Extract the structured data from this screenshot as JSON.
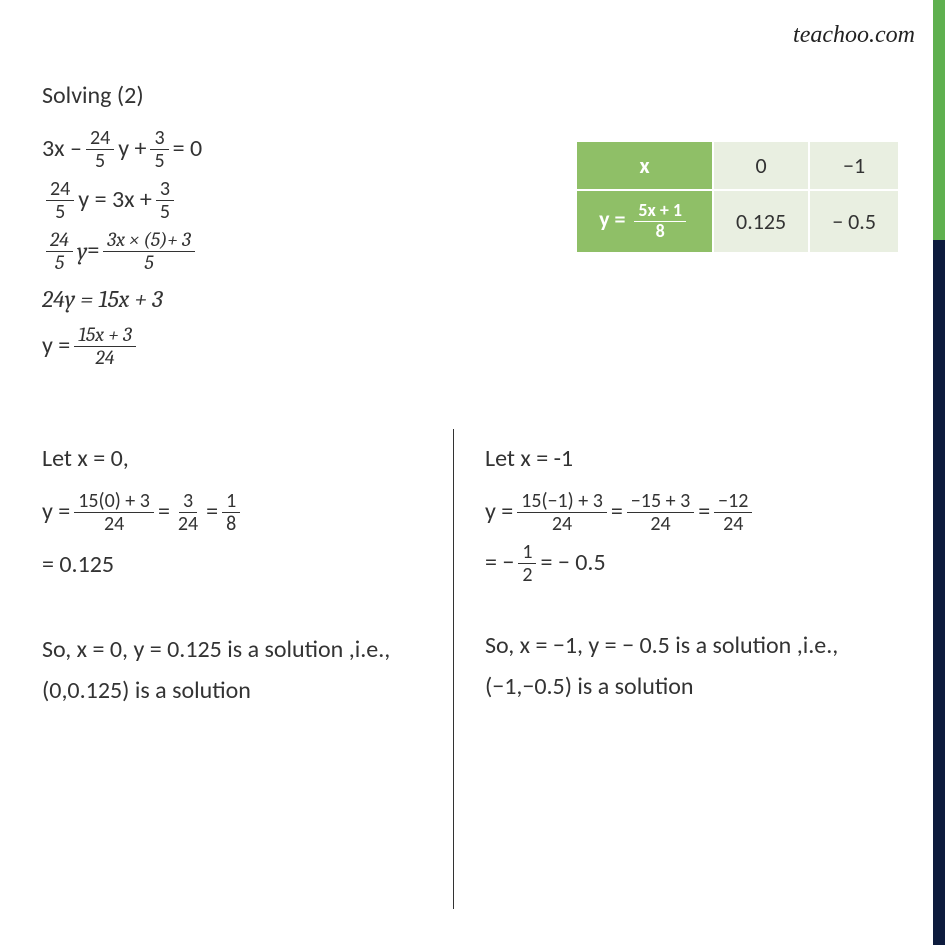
{
  "watermark": "teachoo.com",
  "header": "Solving (2)",
  "derivation": {
    "l1_a": "3x –",
    "l1_f1n": "24",
    "l1_f1d": "5",
    "l1_b": "y +",
    "l1_f2n": "3",
    "l1_f2d": "5",
    "l1_c": "= 0",
    "l2_f1n": "24",
    "l2_f1d": "5",
    "l2_a": "y = 3x +",
    "l2_f2n": "3",
    "l2_f2d": "5",
    "l3_f1n": "24",
    "l3_f1d": "5",
    "l3_a": "y",
    "l3_b": " = ",
    "l3_f2n": "3x × (5)+ 3",
    "l3_f2d": "5",
    "l4": "24y  =  15x  +  3",
    "l5_a": "y =",
    "l5_fn": "15x + 3",
    "l5_fd": "24"
  },
  "table": {
    "x_label": "x",
    "y_label_prefix": "y =",
    "y_frac_n": "5x + 1",
    "y_frac_d": "8",
    "c_x0": "0",
    "c_x1": "−1",
    "c_y0": "0.125",
    "c_y1": "− 0.5"
  },
  "left": {
    "head": "Let x = 0,",
    "l1_a": "y =",
    "l1_f1n": "15(0) + 3",
    "l1_f1d": "24",
    "l1_b": " = ",
    "l1_f2n": "3",
    "l1_f2d": "24",
    "l1_c": " = ",
    "l1_f3n": "1",
    "l1_f3d": "8",
    "l2": "= 0.125",
    "conc": "So, x = 0, y = 0.125 is a solution ,i.e., (0,0.125) is a solution"
  },
  "right": {
    "head": "Let x = -1",
    "l1_a": "y =",
    "l1_f1n": "15(−1) + 3",
    "l1_f1d": "24",
    "l1_b": " = ",
    "l1_f2n": "−15 + 3",
    "l1_f2d": "24",
    "l1_c": "=",
    "l1_f3n": "−12",
    "l1_f3d": "24",
    "l2_a": "= −",
    "l2_fn": "1",
    "l2_fd": "2",
    "l2_b": " = − 0.5",
    "conc": "So, x = −1, y = − 0.5 is a solution ,i.e., (−1,−0.5) is a solution"
  },
  "colors": {
    "table_header": "#8fbf67",
    "table_cell": "#e9efe1",
    "stripe_green": "#5fb04f",
    "stripe_navy": "#0d1b3d"
  }
}
